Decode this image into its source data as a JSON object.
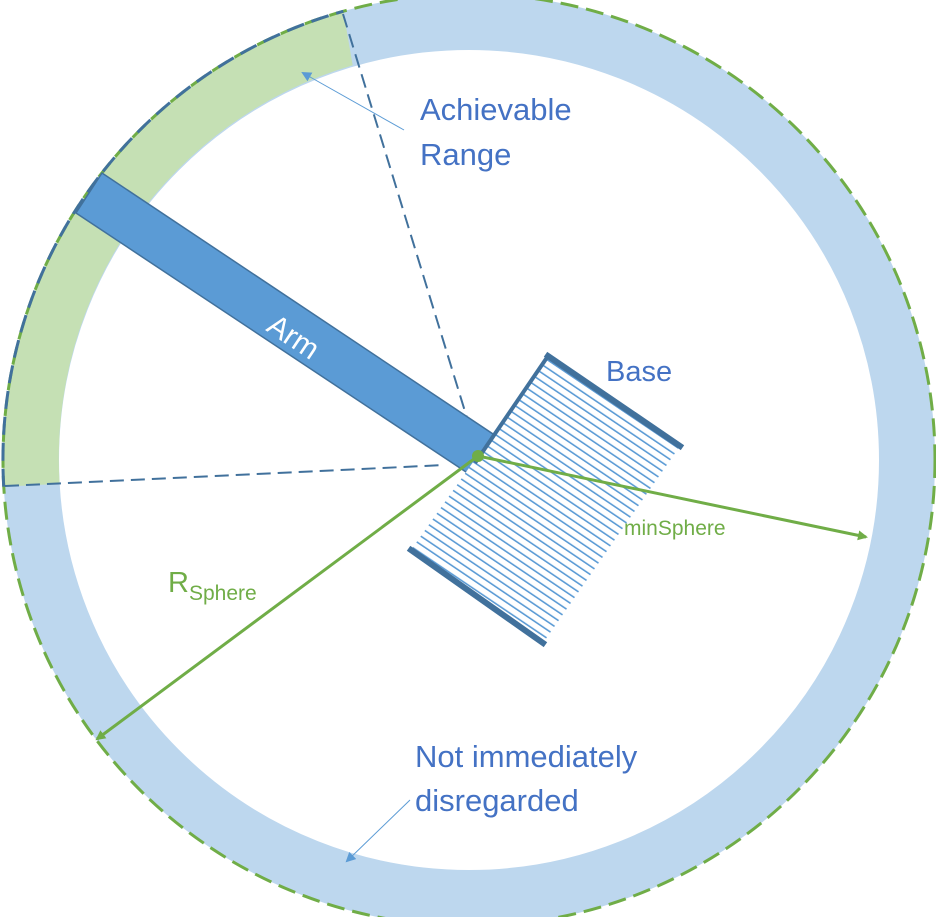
{
  "labels": {
    "achievable_range_line1": "Achievable",
    "achievable_range_line2": "Range",
    "arm": "Arm",
    "base": "Base",
    "min_sphere": "minSphere",
    "r_sphere_main": "R",
    "r_sphere_sub": "Sphere",
    "not_disregarded_line1": "Not immediately",
    "not_disregarded_line2": "disregarded"
  },
  "colors": {
    "ring_blue": "#bdd7ee",
    "ring_green": "#c5e0b4",
    "arm_blue": "#5b9bd5",
    "dash_blue": "#41719c",
    "label_blue": "#4472c4",
    "green": "#70ad47"
  }
}
